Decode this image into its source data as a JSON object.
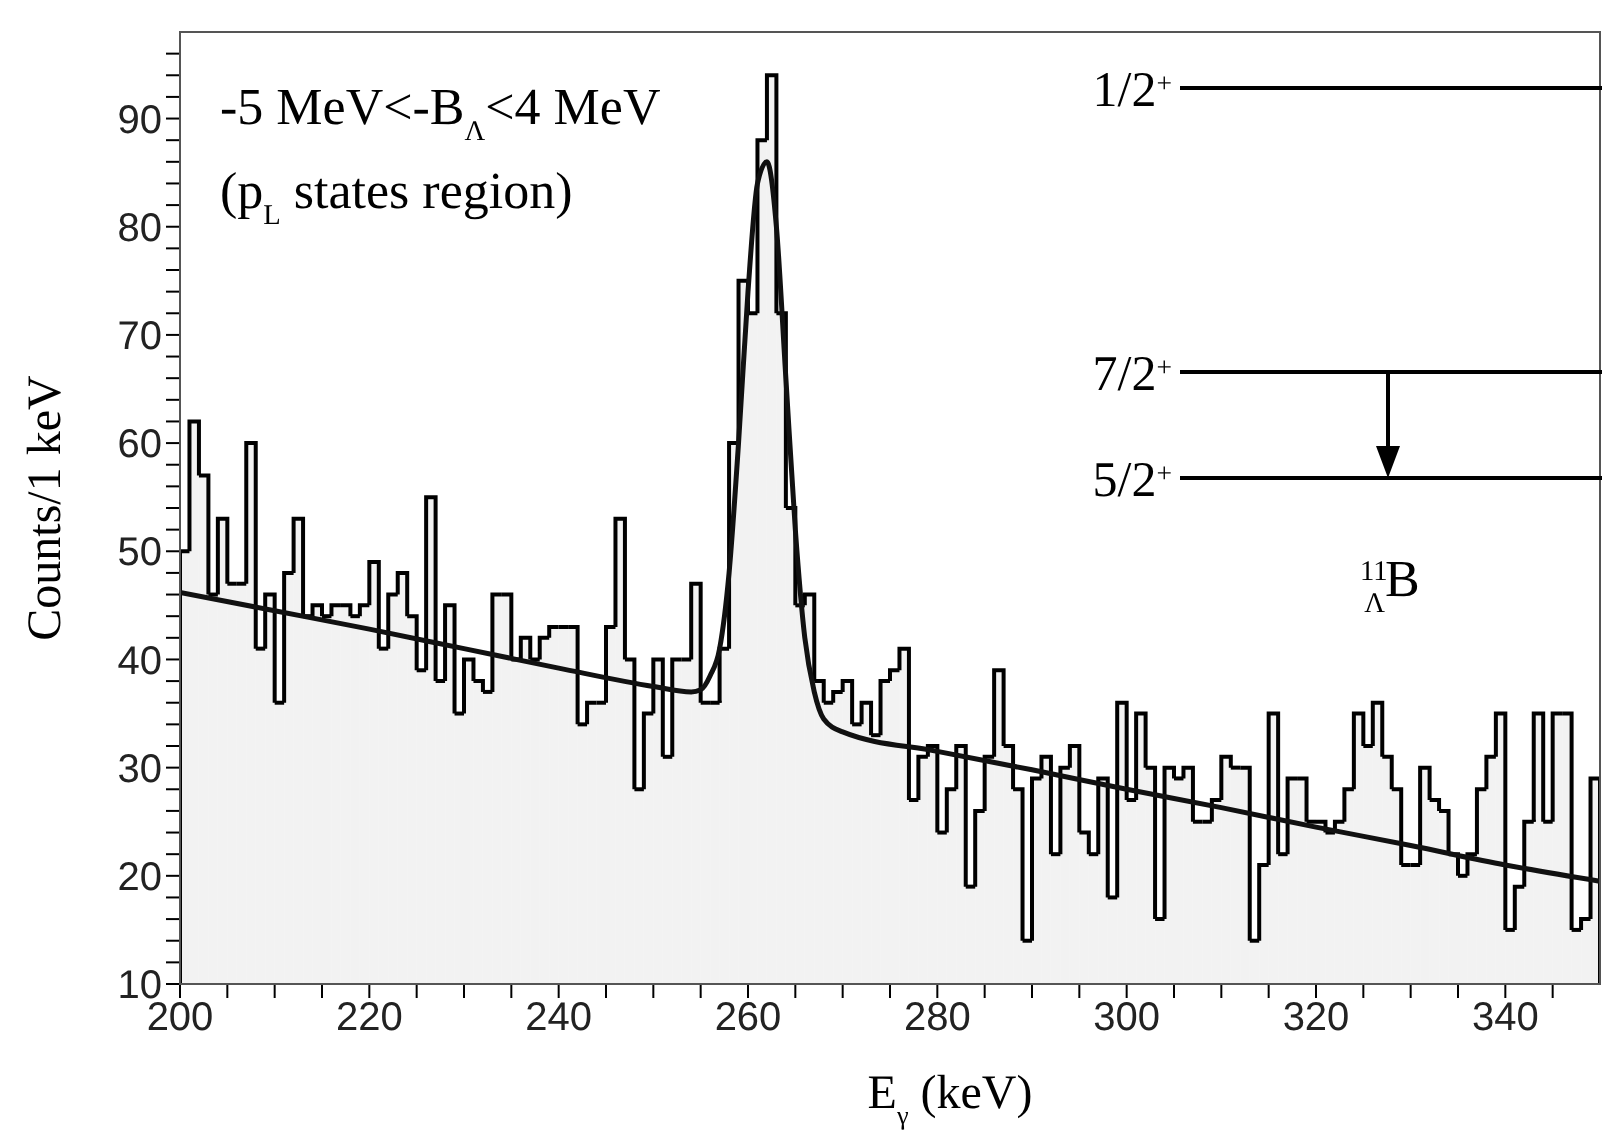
{
  "chart_data": {
    "type": "histogram",
    "xlabel": "E$_{γ}$ (keV)",
    "ylabel": "Counts/1 keV",
    "bins": [
      200,
      201,
      202,
      203,
      204,
      205,
      206,
      207,
      208,
      209,
      210,
      211,
      212,
      213,
      214,
      215,
      216,
      217,
      218,
      219,
      220,
      221,
      222,
      223,
      224,
      225,
      226,
      227,
      228,
      229,
      230,
      231,
      232,
      233,
      234,
      235,
      236,
      237,
      238,
      239,
      240,
      241,
      242,
      243,
      244,
      245,
      246,
      247,
      248,
      249,
      250,
      251,
      252,
      253,
      254,
      255,
      256,
      257,
      258,
      259,
      260,
      261,
      262,
      263,
      264,
      265,
      266,
      267,
      268,
      269,
      270,
      271,
      272,
      273,
      274,
      275,
      276,
      277,
      278,
      279,
      280,
      281,
      282,
      283,
      284,
      285,
      286,
      287,
      288,
      289,
      290,
      291,
      292,
      293,
      294,
      295,
      296,
      297,
      298,
      299,
      300,
      301,
      302,
      303,
      304,
      305,
      306,
      307,
      308,
      309,
      310,
      311,
      312,
      313,
      314,
      315,
      316,
      317,
      318,
      319,
      320,
      321,
      322,
      323,
      324,
      325,
      326,
      327,
      328,
      329,
      330,
      331,
      332,
      333,
      334,
      335,
      336,
      337,
      338,
      339,
      340,
      341,
      342,
      343,
      344,
      345,
      346,
      347,
      348,
      349,
      350
    ],
    "series": [
      {
        "type": "histogram",
        "color": "#000000",
        "values": [
          50,
          62,
          57,
          46,
          53,
          47,
          47,
          60,
          41,
          46,
          36,
          48,
          53,
          44,
          45,
          44,
          45,
          45,
          44,
          45,
          49,
          41,
          46,
          48,
          44,
          39,
          55,
          38,
          45,
          35,
          40,
          38,
          37,
          46,
          46,
          40,
          42,
          40,
          42,
          43,
          43,
          43,
          34,
          36,
          36,
          43,
          53,
          40,
          28,
          35,
          40,
          31,
          40,
          40,
          47,
          36,
          36,
          41,
          60,
          75,
          72,
          88,
          94,
          72,
          54,
          45,
          46,
          38,
          36,
          37,
          38,
          34,
          36,
          33,
          38,
          39,
          41,
          27,
          31,
          32,
          24,
          28,
          32,
          19,
          26,
          31,
          39,
          32,
          28,
          14,
          29,
          31,
          22,
          30,
          32,
          24,
          22,
          29,
          18,
          36,
          27,
          35,
          30,
          16,
          30,
          29,
          30,
          25,
          25,
          27,
          31,
          30,
          30,
          14,
          21,
          35,
          22,
          29,
          29,
          25,
          25,
          24,
          25,
          28,
          35,
          32,
          36,
          31,
          28,
          21,
          21,
          30,
          27,
          26,
          22,
          20,
          22,
          28,
          31,
          35,
          15,
          19,
          25,
          35,
          25,
          35,
          35,
          15,
          16,
          29
        ]
      },
      {
        "type": "line",
        "color": "#111111",
        "x": [
          200,
          210,
          220,
          230,
          240,
          250,
          254,
          255,
          256,
          257,
          258,
          259,
          260,
          261,
          262,
          263,
          264,
          265,
          266,
          267,
          268,
          270,
          280,
          290,
          300,
          310,
          320,
          330,
          340,
          350
        ],
        "values": [
          46.2,
          44.5,
          42.8,
          41,
          39.2,
          37.5,
          37,
          37.2,
          38.5,
          41,
          48,
          60,
          74,
          84,
          86,
          80,
          66,
          52,
          42,
          37,
          34.5,
          33.3,
          31.5,
          29.8,
          28,
          26.3,
          24.5,
          22.8,
          21,
          19.5
        ]
      }
    ],
    "xlim": [
      200,
      350
    ],
    "xticks": [
      200,
      {
        "value": 205,
        "label": null
      },
      {
        "value": 210,
        "label": null
      },
      {
        "value": 215,
        "label": null
      },
      220,
      {
        "value": 225,
        "label": null
      },
      {
        "value": 230,
        "label": null
      },
      {
        "value": 235,
        "label": null
      },
      240,
      {
        "value": 245,
        "label": null
      },
      {
        "value": 250,
        "label": null
      },
      {
        "value": 255,
        "label": null
      },
      260,
      {
        "value": 265,
        "label": null
      },
      {
        "value": 270,
        "label": null
      },
      {
        "value": 275,
        "label": null
      },
      280,
      {
        "value": 285,
        "label": null
      },
      {
        "value": 290,
        "label": null
      },
      {
        "value": 295,
        "label": null
      },
      300,
      {
        "value": 305,
        "label": null
      },
      {
        "value": 310,
        "label": null
      },
      {
        "value": 315,
        "label": null
      },
      320,
      {
        "value": 325,
        "label": null
      },
      {
        "value": 330,
        "label": null
      },
      {
        "value": 335,
        "label": null
      },
      340,
      {
        "value": 345,
        "label": null
      }
    ],
    "ylim": [
      10,
      98
    ],
    "yticks": [
      10,
      {
        "value": 12,
        "label": null
      },
      {
        "value": 14,
        "label": null
      },
      {
        "value": 16,
        "label": null
      },
      {
        "value": 18,
        "label": null
      },
      20,
      {
        "value": 22,
        "label": null
      },
      {
        "value": 24,
        "label": null
      },
      {
        "value": 26,
        "label": null
      },
      {
        "value": 28,
        "label": null
      },
      30,
      {
        "value": 32,
        "label": null
      },
      {
        "value": 34,
        "label": null
      },
      {
        "value": 36,
        "label": null
      },
      {
        "value": 38,
        "label": null
      },
      40,
      {
        "value": 42,
        "label": null
      },
      {
        "value": 44,
        "label": null
      },
      {
        "value": 46,
        "label": null
      },
      {
        "value": 48,
        "label": null
      },
      50,
      {
        "value": 52,
        "label": null
      },
      {
        "value": 54,
        "label": null
      },
      {
        "value": 56,
        "label": null
      },
      {
        "value": 58,
        "label": null
      },
      60,
      {
        "value": 62,
        "label": null
      },
      {
        "value": 64,
        "label": null
      },
      {
        "value": 66,
        "label": null
      },
      {
        "value": 68,
        "label": null
      },
      70,
      {
        "value": 72,
        "label": null
      },
      {
        "value": 74,
        "label": null
      },
      {
        "value": 76,
        "label": null
      },
      {
        "value": 78,
        "label": null
      },
      80,
      {
        "value": 82,
        "label": null
      },
      {
        "value": 84,
        "label": null
      },
      {
        "value": 86,
        "label": null
      },
      {
        "value": 88,
        "label": null
      },
      90,
      {
        "value": 92,
        "label": null
      },
      {
        "value": 94,
        "label": null
      },
      {
        "value": 96,
        "label": null
      }
    ],
    "annotations": [
      "-5 MeV<-B$_{Λ}$<4 MeV",
      "(p$_{L}$ states region)",
      "1/2$^{+}$",
      "7/2$^{+}$",
      "5/2$^{+}$",
      "$^{11}$$_{Λ}$B"
    ]
  }
}
